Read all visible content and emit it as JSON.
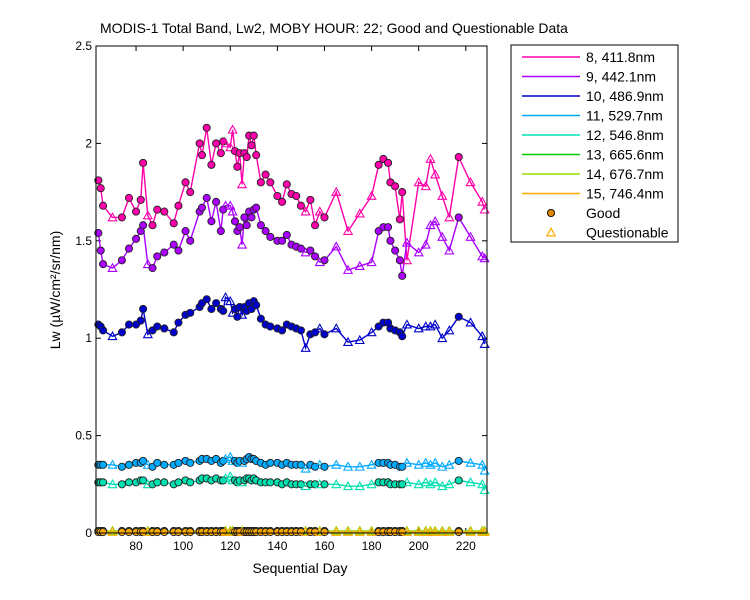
{
  "chart_data": {
    "type": "line",
    "title": "MODIS-1 Total Band,  Lw2, MOBY HOUR: 22;  Good and Questionable Data",
    "xlabel": "Sequential Day",
    "ylabel": "Lw (µW/cm²/sr/nm)",
    "xlim": [
      63,
      229
    ],
    "ylim": [
      0,
      2.5
    ],
    "xticks": [
      80,
      100,
      120,
      140,
      160,
      180,
      200,
      220
    ],
    "yticks": [
      0,
      0.5,
      1,
      1.5,
      2,
      2.5
    ],
    "xtick_labels": [
      "80",
      "100",
      "120",
      "140",
      "160",
      "180",
      "200",
      "220"
    ],
    "ytick_labels": [
      "0",
      "0.5",
      "1",
      "1.5",
      "2",
      "2.5"
    ],
    "grid": false,
    "legend_position": "outside-top-right",
    "x": [
      64,
      65,
      66,
      70,
      74,
      77,
      80,
      82,
      83,
      85,
      87,
      89,
      92,
      96,
      98,
      101,
      103,
      107,
      108,
      110,
      112,
      114,
      116,
      117,
      118,
      120,
      121,
      122,
      123,
      124,
      125,
      126,
      127,
      128,
      129,
      130,
      131,
      133,
      135,
      137,
      140,
      142,
      144,
      146,
      148,
      150,
      152,
      154,
      156,
      158,
      160,
      165,
      170,
      175,
      180,
      183,
      185,
      187,
      188,
      190,
      192,
      193,
      195,
      200,
      203,
      205,
      207,
      210,
      213,
      217,
      222,
      227,
      228
    ],
    "series": [
      {
        "name": "8, 411.8nm",
        "color": "#ff00aa",
        "values": [
          1.81,
          1.77,
          1.68,
          1.62,
          1.62,
          1.72,
          1.65,
          1.71,
          1.9,
          1.63,
          1.58,
          1.66,
          1.65,
          1.59,
          1.68,
          1.8,
          1.75,
          2.0,
          1.94,
          2.08,
          1.89,
          2.0,
          1.95,
          2.01,
          2.0,
          1.98,
          2.07,
          1.96,
          1.88,
          1.95,
          1.79,
          1.95,
          1.93,
          2.04,
          1.99,
          2.04,
          1.94,
          1.8,
          1.84,
          1.8,
          1.73,
          1.7,
          1.79,
          1.74,
          1.73,
          1.68,
          1.65,
          1.71,
          1.58,
          1.65,
          1.62,
          1.75,
          1.55,
          1.64,
          1.73,
          1.89,
          1.92,
          1.9,
          1.8,
          1.78,
          1.61,
          1.75,
          1.4,
          1.8,
          1.78,
          1.92,
          1.84,
          1.73,
          1.62,
          1.93,
          1.8,
          1.7,
          1.66
        ]
      },
      {
        "name": "9, 442.1nm",
        "color": "#aa00ff",
        "values": [
          1.54,
          1.45,
          1.38,
          1.36,
          1.4,
          1.46,
          1.51,
          1.55,
          1.58,
          1.38,
          1.36,
          1.42,
          1.44,
          1.48,
          1.45,
          1.55,
          1.5,
          1.65,
          1.67,
          1.72,
          1.6,
          1.7,
          1.55,
          1.66,
          1.68,
          1.68,
          1.65,
          1.6,
          1.55,
          1.57,
          1.48,
          1.62,
          1.58,
          1.65,
          1.62,
          1.66,
          1.67,
          1.58,
          1.55,
          1.52,
          1.5,
          1.5,
          1.53,
          1.48,
          1.47,
          1.46,
          1.44,
          1.45,
          1.42,
          1.39,
          1.4,
          1.47,
          1.35,
          1.37,
          1.39,
          1.55,
          1.57,
          1.57,
          1.5,
          1.45,
          1.4,
          1.32,
          1.49,
          1.44,
          1.48,
          1.58,
          1.6,
          1.52,
          1.45,
          1.62,
          1.52,
          1.42,
          1.41
        ]
      },
      {
        "name": "10, 486.9nm",
        "color": "#0000cc",
        "values": [
          1.07,
          1.06,
          1.04,
          1.01,
          1.03,
          1.07,
          1.07,
          1.09,
          1.15,
          1.02,
          1.04,
          1.06,
          1.05,
          1.03,
          1.08,
          1.12,
          1.13,
          1.16,
          1.18,
          1.2,
          1.15,
          1.18,
          1.15,
          1.14,
          1.21,
          1.19,
          1.13,
          1.15,
          1.11,
          1.16,
          1.12,
          1.16,
          1.14,
          1.18,
          1.15,
          1.19,
          1.17,
          1.1,
          1.07,
          1.06,
          1.05,
          1.04,
          1.07,
          1.06,
          1.05,
          1.04,
          0.95,
          1.02,
          1.03,
          1.05,
          1.02,
          1.05,
          0.98,
          0.99,
          1.03,
          1.06,
          1.08,
          1.08,
          1.05,
          1.04,
          1.03,
          1.01,
          1.07,
          1.05,
          1.06,
          1.06,
          1.07,
          1.0,
          1.04,
          1.11,
          1.08,
          1.01,
          0.97
        ]
      },
      {
        "name": "11, 529.7nm",
        "color": "#00aaff",
        "values": [
          0.35,
          0.35,
          0.35,
          0.35,
          0.34,
          0.35,
          0.36,
          0.36,
          0.37,
          0.35,
          0.34,
          0.36,
          0.35,
          0.35,
          0.36,
          0.37,
          0.36,
          0.37,
          0.38,
          0.38,
          0.37,
          0.38,
          0.36,
          0.37,
          0.38,
          0.39,
          0.37,
          0.37,
          0.36,
          0.37,
          0.36,
          0.37,
          0.38,
          0.39,
          0.38,
          0.38,
          0.37,
          0.36,
          0.35,
          0.36,
          0.36,
          0.35,
          0.36,
          0.35,
          0.35,
          0.35,
          0.33,
          0.35,
          0.34,
          0.35,
          0.34,
          0.35,
          0.34,
          0.34,
          0.35,
          0.36,
          0.36,
          0.36,
          0.35,
          0.35,
          0.34,
          0.34,
          0.36,
          0.35,
          0.36,
          0.35,
          0.36,
          0.34,
          0.35,
          0.37,
          0.36,
          0.35,
          0.32
        ]
      },
      {
        "name": "12, 546.8nm",
        "color": "#00e0b0",
        "values": [
          0.26,
          0.26,
          0.26,
          0.25,
          0.25,
          0.26,
          0.26,
          0.27,
          0.27,
          0.25,
          0.25,
          0.26,
          0.26,
          0.25,
          0.26,
          0.27,
          0.26,
          0.27,
          0.28,
          0.28,
          0.27,
          0.28,
          0.27,
          0.27,
          0.28,
          0.29,
          0.27,
          0.27,
          0.26,
          0.27,
          0.26,
          0.27,
          0.28,
          0.28,
          0.27,
          0.28,
          0.27,
          0.26,
          0.26,
          0.26,
          0.26,
          0.25,
          0.26,
          0.25,
          0.25,
          0.25,
          0.24,
          0.25,
          0.25,
          0.25,
          0.25,
          0.25,
          0.24,
          0.24,
          0.25,
          0.26,
          0.26,
          0.26,
          0.25,
          0.25,
          0.25,
          0.25,
          0.26,
          0.25,
          0.26,
          0.25,
          0.26,
          0.24,
          0.25,
          0.27,
          0.26,
          0.25,
          0.22
        ]
      },
      {
        "name": "13, 665.6nm",
        "color": "#00cc00",
        "values": [
          0.01,
          0.01,
          0.01,
          0.01,
          0.01,
          0.01,
          0.01,
          0.01,
          0.01,
          0.01,
          0.01,
          0.01,
          0.01,
          0.01,
          0.01,
          0.01,
          0.01,
          0.01,
          0.01,
          0.01,
          0.01,
          0.01,
          0.01,
          0.01,
          0.01,
          0.01,
          0.01,
          0.01,
          0.01,
          0.01,
          0.01,
          0.01,
          0.01,
          0.01,
          0.01,
          0.01,
          0.01,
          0.01,
          0.01,
          0.01,
          0.01,
          0.01,
          0.01,
          0.01,
          0.01,
          0.01,
          0.01,
          0.01,
          0.01,
          0.01,
          0.01,
          0.01,
          0.01,
          0.01,
          0.01,
          0.01,
          0.01,
          0.01,
          0.01,
          0.01,
          0.01,
          0.01,
          0.01,
          0.01,
          0.01,
          0.01,
          0.01,
          0.01,
          0.01,
          0.01,
          0.01,
          0.01,
          0.01
        ]
      },
      {
        "name": "14, 676.7nm",
        "color": "#99dd00",
        "values": [
          0.01,
          0.01,
          0.01,
          0.01,
          0.01,
          0.01,
          0.01,
          0.01,
          0.01,
          0.01,
          0.01,
          0.01,
          0.01,
          0.01,
          0.01,
          0.01,
          0.01,
          0.01,
          0.01,
          0.01,
          0.01,
          0.01,
          0.01,
          0.01,
          0.01,
          0.01,
          0.01,
          0.01,
          0.01,
          0.01,
          0.01,
          0.01,
          0.01,
          0.01,
          0.01,
          0.01,
          0.01,
          0.01,
          0.01,
          0.01,
          0.01,
          0.01,
          0.01,
          0.01,
          0.01,
          0.01,
          0.01,
          0.01,
          0.01,
          0.01,
          0.01,
          0.01,
          0.01,
          0.01,
          0.01,
          0.01,
          0.01,
          0.01,
          0.01,
          0.01,
          0.01,
          0.01,
          0.01,
          0.01,
          0.01,
          0.01,
          0.01,
          0.01,
          0.01,
          0.01,
          0.01,
          0.01,
          0.01
        ]
      },
      {
        "name": "15, 746.4nm",
        "color": "#ffaa00",
        "values": [
          0.005,
          0.005,
          0.005,
          0.005,
          0.005,
          0.005,
          0.005,
          0.005,
          0.005,
          0.005,
          0.005,
          0.005,
          0.005,
          0.005,
          0.005,
          0.005,
          0.005,
          0.005,
          0.005,
          0.005,
          0.005,
          0.005,
          0.005,
          0.005,
          0.005,
          0.005,
          0.005,
          0.005,
          0.005,
          0.005,
          0.005,
          0.005,
          0.005,
          0.005,
          0.005,
          0.005,
          0.005,
          0.005,
          0.005,
          0.005,
          0.005,
          0.005,
          0.005,
          0.005,
          0.005,
          0.005,
          0.005,
          0.005,
          0.005,
          0.005,
          0.005,
          0.005,
          0.005,
          0.005,
          0.005,
          0.005,
          0.005,
          0.005,
          0.005,
          0.005,
          0.005,
          0.005,
          0.005,
          0.005,
          0.005,
          0.005,
          0.005,
          0.005,
          0.005,
          0.005,
          0.005,
          0.005,
          0.005
        ]
      }
    ],
    "quality": [
      "G",
      "G",
      "G",
      "Q",
      "G",
      "G",
      "G",
      "G",
      "G",
      "Q",
      "G",
      "G",
      "G",
      "G",
      "G",
      "G",
      "G",
      "G",
      "G",
      "G",
      "G",
      "G",
      "G",
      "G",
      "Q",
      "Q",
      "Q",
      "G",
      "G",
      "G",
      "Q",
      "G",
      "G",
      "G",
      "G",
      "G",
      "G",
      "G",
      "G",
      "G",
      "G",
      "G",
      "G",
      "G",
      "G",
      "G",
      "Q",
      "G",
      "G",
      "Q",
      "G",
      "Q",
      "Q",
      "Q",
      "Q",
      "G",
      "G",
      "G",
      "G",
      "G",
      "G",
      "G",
      "Q",
      "Q",
      "Q",
      "Q",
      "Q",
      "Q",
      "Q",
      "G",
      "Q",
      "Q",
      "Q"
    ],
    "markers": {
      "good": {
        "label": "Good",
        "fill": "#dd8800",
        "stroke": "#000000"
      },
      "questionable": {
        "label": "Questionable",
        "fill": "none",
        "stroke": "#ffaa00"
      }
    }
  }
}
